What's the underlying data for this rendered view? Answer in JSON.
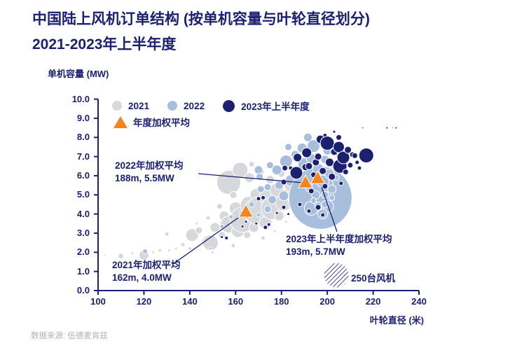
{
  "header": {
    "title_line1": "中国陆上风机订单结构 (按单机容量与叶轮直径划分)",
    "title_line2": "2021-2023年上半年度"
  },
  "axes": {
    "y_label": "单机容量 (MW)",
    "x_label": "叶轮直径 (米)",
    "y_ticks": [
      "0.0",
      "1.0",
      "2.0",
      "3.0",
      "4.0",
      "5.0",
      "6.0",
      "7.0",
      "8.0",
      "9.0",
      "10.0"
    ],
    "x_ticks": [
      "100",
      "120",
      "140",
      "160",
      "180",
      "200",
      "220",
      "240"
    ]
  },
  "legend": {
    "items": [
      {
        "label": "2021",
        "color": "#d7d8db"
      },
      {
        "label": "2022",
        "color": "#a8bedd"
      },
      {
        "label": "2023年上半年度",
        "color": "#1b2071"
      }
    ],
    "avg": {
      "label": "年度加权平均",
      "color": "#f5831f"
    }
  },
  "annotations": {
    "avg2022": {
      "line1": "2022年加权平均",
      "line2": "188m, 5.5MW"
    },
    "avg2021": {
      "line1": "2021年加权平均",
      "line2": "162m, 4.0MW"
    },
    "avg2023": {
      "line1": "2023年上半年度加权平均",
      "line2": "193m, 5.7MW"
    }
  },
  "size_legend": {
    "label": "250台风机",
    "reference_units": 250
  },
  "source": {
    "text": "数据来源: 伍德麦肯兹"
  },
  "colors": {
    "navy": "#1b2071",
    "light_blue": "#a8bedd",
    "gray": "#d7d8db",
    "orange": "#f5831f",
    "source_gray": "#b1b1b1",
    "white": "#ffffff"
  },
  "chart_data": {
    "type": "bubble",
    "title": "中国陆上风机订单结构 (按单机容量与叶轮直径划分) 2021-2023年上半年度",
    "xlabel": "叶轮直径 (米)",
    "ylabel": "单机容量 (MW)",
    "xlim": [
      100,
      240
    ],
    "ylim": [
      0,
      10
    ],
    "grid": false,
    "legend_position": "top-inside",
    "bubble_size_reference": {
      "units": 250,
      "radius_px": 17.5
    },
    "weighted_averages": [
      {
        "year": "2021",
        "diameter_m": 162,
        "capacity_mw": 4.0
      },
      {
        "year": "2022",
        "diameter_m": 188,
        "capacity_mw": 5.5
      },
      {
        "year": "2023H1",
        "diameter_m": 193,
        "capacity_mw": 5.7
      }
    ],
    "markers": [
      {
        "label": "2021",
        "x": 164.5,
        "y": 4.15
      },
      {
        "label": "2022",
        "x": 190.5,
        "y": 5.68
      },
      {
        "label": "2023H1",
        "x": 195.8,
        "y": 5.9
      }
    ],
    "series": [
      {
        "name": "2021",
        "color": "#d7d8db",
        "points": [
          [
            103,
            1.85,
            1.5
          ],
          [
            110,
            1.8,
            4
          ],
          [
            115,
            1.95,
            2
          ],
          [
            120,
            1.85,
            7
          ],
          [
            124,
            2.0,
            2
          ],
          [
            127,
            2.1,
            2.5
          ],
          [
            131,
            2.1,
            2
          ],
          [
            130,
            2.95,
            3
          ],
          [
            134,
            2.2,
            2
          ],
          [
            137,
            2.4,
            3
          ],
          [
            140,
            2.2,
            2.5
          ],
          [
            141,
            2.9,
            9
          ],
          [
            144,
            3.15,
            5
          ],
          [
            146,
            2.6,
            3
          ],
          [
            149,
            2.5,
            11
          ],
          [
            150,
            2.0,
            2
          ],
          [
            151,
            3.3,
            7
          ],
          [
            154,
            2.9,
            5
          ],
          [
            155,
            3.9,
            7
          ],
          [
            157,
            3.45,
            12
          ],
          [
            159,
            2.35,
            3
          ],
          [
            160,
            4.3,
            9
          ],
          [
            161,
            3.1,
            9
          ],
          [
            163,
            3.7,
            18
          ],
          [
            165,
            2.9,
            5
          ],
          [
            166,
            4.45,
            13
          ],
          [
            168,
            3.3,
            7
          ],
          [
            169,
            5.0,
            9
          ],
          [
            170,
            4.15,
            20
          ],
          [
            172,
            2.75,
            3
          ],
          [
            173,
            3.55,
            9
          ],
          [
            174,
            4.9,
            12
          ],
          [
            176,
            4.3,
            16
          ],
          [
            177,
            3.1,
            2
          ],
          [
            178,
            5.25,
            10
          ],
          [
            179,
            3.9,
            7
          ],
          [
            181,
            4.6,
            12
          ],
          [
            182,
            3.6,
            2
          ],
          [
            183,
            5.05,
            8
          ],
          [
            184,
            5.5,
            9
          ],
          [
            186,
            4.35,
            7
          ],
          [
            188,
            5.15,
            6
          ],
          [
            157,
            5.65,
            17
          ],
          [
            162,
            6.3,
            11
          ],
          [
            166,
            5.9,
            7
          ],
          [
            159,
            5.0,
            5
          ],
          [
            153,
            4.4,
            4
          ],
          [
            148,
            3.8,
            3
          ],
          [
            143,
            3.5,
            2
          ],
          [
            167,
            6.6,
            4
          ],
          [
            171,
            6.2,
            5
          ],
          [
            175,
            5.8,
            6
          ],
          [
            180,
            6.1,
            5
          ],
          [
            185,
            6.95,
            5
          ],
          [
            190,
            6.55,
            4
          ],
          [
            193,
            5.95,
            5
          ],
          [
            199,
            5.35,
            4
          ]
        ]
      },
      {
        "name": "2022",
        "color": "#a8bedd",
        "points": [
          [
            120.5,
            2.05,
            3.5
          ],
          [
            149,
            2.2,
            2
          ],
          [
            154,
            3.35,
            3
          ],
          [
            158,
            3.85,
            3
          ],
          [
            163,
            4.05,
            4
          ],
          [
            167,
            4.5,
            4
          ],
          [
            170,
            3.95,
            3
          ],
          [
            170,
            6.3,
            6
          ],
          [
            170.5,
            5.95,
            5
          ],
          [
            171,
            5.3,
            5
          ],
          [
            174,
            4.25,
            5
          ],
          [
            174,
            5.4,
            5
          ],
          [
            175,
            6.55,
            5
          ],
          [
            176,
            4.75,
            6
          ],
          [
            178,
            6.3,
            7
          ],
          [
            179,
            5.5,
            6
          ],
          [
            181,
            4.95,
            7
          ],
          [
            182,
            6.75,
            9
          ],
          [
            183,
            7.5,
            5
          ],
          [
            184,
            5.75,
            8
          ],
          [
            185,
            4.55,
            7
          ],
          [
            186,
            7.1,
            6
          ],
          [
            187,
            6.15,
            7
          ],
          [
            188,
            5.3,
            9
          ],
          [
            189,
            7.45,
            7
          ],
          [
            190,
            4.2,
            4
          ],
          [
            190,
            6.6,
            9
          ],
          [
            191,
            5.0,
            8
          ],
          [
            191.5,
            8.0,
            6
          ],
          [
            192,
            5.9,
            10
          ],
          [
            193,
            6.9,
            7
          ],
          [
            194,
            3.9,
            4
          ],
          [
            194,
            7.55,
            9
          ],
          [
            197,
            4.85,
            45
          ],
          [
            193,
            4.3,
            10
          ],
          [
            197,
            5.4,
            12
          ],
          [
            200,
            4.4,
            9
          ],
          [
            195,
            5.0,
            6
          ],
          [
            199,
            5.0,
            5
          ],
          [
            194,
            4.7,
            4
          ],
          [
            201,
            5.6,
            5
          ],
          [
            198,
            4.0,
            7
          ],
          [
            196,
            4.45,
            5
          ],
          [
            192,
            5.35,
            5
          ],
          [
            196,
            6.35,
            8
          ],
          [
            198,
            5.7,
            9
          ],
          [
            199,
            6.85,
            6
          ],
          [
            200,
            7.3,
            6
          ],
          [
            201,
            6.1,
            7
          ],
          [
            202,
            5.3,
            6
          ],
          [
            203,
            6.55,
            5
          ],
          [
            204,
            5.9,
            4
          ],
          [
            205,
            7.05,
            4
          ],
          [
            206,
            6.3,
            3
          ],
          [
            199,
            4.5,
            5
          ],
          [
            202,
            4.85,
            4
          ]
        ]
      },
      {
        "name": "2023年上半年度",
        "color": "#1b2071",
        "points": [
          [
            154,
            2.8,
            2
          ],
          [
            156,
            2.75,
            2.5
          ],
          [
            163,
            3.35,
            2
          ],
          [
            164.5,
            3.6,
            2
          ],
          [
            165,
            3.85,
            2
          ],
          [
            169,
            3.5,
            2
          ],
          [
            170,
            4.8,
            3
          ],
          [
            172,
            4.85,
            3
          ],
          [
            173,
            3.3,
            3
          ],
          [
            174.5,
            3.45,
            2.5
          ],
          [
            178,
            4.05,
            2
          ],
          [
            181,
            4.35,
            3
          ],
          [
            181,
            5.67,
            4
          ],
          [
            181.5,
            6.4,
            4
          ],
          [
            183,
            4.0,
            2
          ],
          [
            184,
            6.4,
            3
          ],
          [
            186.5,
            6.15,
            9
          ],
          [
            187,
            6.95,
            6
          ],
          [
            188,
            4.5,
            3
          ],
          [
            189,
            5.55,
            3
          ],
          [
            190.5,
            6.45,
            5
          ],
          [
            192,
            6.5,
            5
          ],
          [
            191,
            7.2,
            7
          ],
          [
            192,
            4.15,
            3
          ],
          [
            193,
            5.2,
            4
          ],
          [
            194,
            6.05,
            4
          ],
          [
            195,
            6.7,
            5
          ],
          [
            196,
            4.35,
            4
          ],
          [
            196,
            5.85,
            4
          ],
          [
            196,
            7.0,
            5
          ],
          [
            197,
            7.9,
            6
          ],
          [
            198,
            3.95,
            3
          ],
          [
            198,
            6.25,
            5
          ],
          [
            199,
            5.45,
            4
          ],
          [
            199,
            8.1,
            3
          ],
          [
            200,
            7.7,
            10
          ],
          [
            201,
            6.7,
            6
          ],
          [
            202,
            5.95,
            5
          ],
          [
            203,
            7.25,
            5
          ],
          [
            203,
            8.3,
            2
          ],
          [
            204,
            6.45,
            4
          ],
          [
            205,
            7.5,
            8
          ],
          [
            205,
            8.0,
            4
          ],
          [
            206,
            5.6,
            3
          ],
          [
            205.5,
            6.5,
            10
          ],
          [
            207,
            6.95,
            9
          ],
          [
            208,
            6.2,
            4
          ],
          [
            209,
            7.35,
            5
          ],
          [
            210,
            6.55,
            4
          ],
          [
            211,
            7.1,
            4
          ],
          [
            212,
            7.05,
            4
          ],
          [
            213,
            6.7,
            3
          ],
          [
            214,
            6.4,
            3
          ],
          [
            217,
            7.06,
            10.5
          ],
          [
            215.5,
            8.5,
            1.2
          ],
          [
            226,
            8.5,
            1.5
          ],
          [
            228.5,
            8.5,
            1
          ],
          [
            230,
            8.5,
            1.5
          ]
        ]
      }
    ]
  }
}
